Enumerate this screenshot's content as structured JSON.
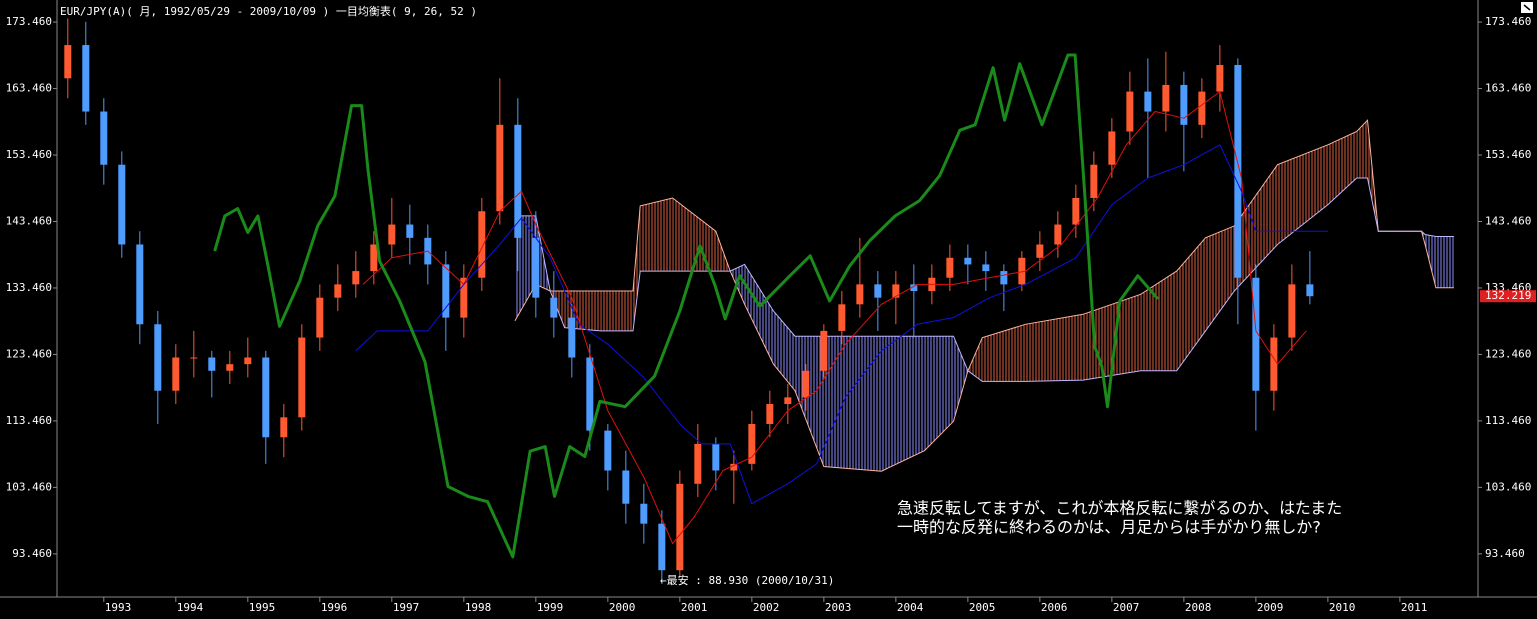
{
  "chart_data": {
    "type": "candlestick",
    "title": "EUR/JPY(A)( 月, 1992/05/29 - 2009/10/09 )   一目均衡表( 9, 26, 52 )",
    "annotations": [
      "←最安 : 88.930 (2000/10/31)",
      "急速反転してますが、これが本格反転に繋がるのか、はたまた",
      "一時的な反発に終わるのかは、月足からは手がかり無しか?"
    ],
    "xlim": [
      1992.35,
      2012.085
    ],
    "ylim": [
      86.97,
      176.78
    ],
    "xticks": [
      1993,
      1994,
      1995,
      1996,
      1997,
      1998,
      1999,
      2000,
      2001,
      2002,
      2003,
      2004,
      2005,
      2006,
      2007,
      2008,
      2009,
      2010,
      2011
    ],
    "yticks": [
      {
        "value": 93.46,
        "label": "93.460"
      },
      {
        "value": 103.46,
        "label": "103.460"
      },
      {
        "value": 113.46,
        "label": "113.460"
      },
      {
        "value": 123.46,
        "label": "123.460"
      },
      {
        "value": 133.46,
        "label": "133.460"
      },
      {
        "value": 143.46,
        "label": "143.460"
      },
      {
        "value": 153.46,
        "label": "153.460"
      },
      {
        "value": 163.46,
        "label": "163.460"
      },
      {
        "value": 173.46,
        "label": "173.460"
      }
    ],
    "last_price": 132.219,
    "last_price_color": "#e02020",
    "candles": {
      "up_color": "#ff5a30",
      "down_color": "#4f9cff",
      "x": [
        1992.5,
        1992.75,
        1993.0,
        1993.25,
        1993.5,
        1993.75,
        1994.0,
        1994.25,
        1994.5,
        1994.75,
        1995.0,
        1995.25,
        1995.5,
        1995.75,
        1996.0,
        1996.25,
        1996.5,
        1996.75,
        1997.0,
        1997.25,
        1997.5,
        1997.75,
        1998.0,
        1998.25,
        1998.5,
        1998.75,
        1999.0,
        1999.25,
        1999.5,
        1999.75,
        2000.0,
        2000.25,
        2000.5,
        2000.75,
        2001.0,
        2001.25,
        2001.5,
        2001.75,
        2002.0,
        2002.25,
        2002.5,
        2002.75,
        2003.0,
        2003.25,
        2003.5,
        2003.75,
        2004.0,
        2004.25,
        2004.5,
        2004.75,
        2005.0,
        2005.25,
        2005.5,
        2005.75,
        2006.0,
        2006.25,
        2006.5,
        2006.75,
        2007.0,
        2007.25,
        2007.5,
        2007.75,
        2008.0,
        2008.25,
        2008.5,
        2008.75,
        2009.0,
        2009.25,
        2009.5,
        2009.75
      ],
      "open": [
        165,
        170,
        160,
        152,
        140,
        128,
        118,
        123,
        123,
        121,
        122,
        123,
        111,
        114,
        126,
        132,
        134,
        136,
        140,
        143,
        141,
        137,
        129,
        135,
        145,
        158,
        141,
        132,
        129,
        123,
        112,
        106,
        101,
        98,
        91,
        104,
        110,
        106,
        107,
        113,
        116,
        117,
        121,
        127,
        131,
        134,
        132,
        134,
        133,
        135,
        138,
        137,
        136,
        134,
        138,
        140,
        143,
        147,
        152,
        157,
        163,
        160,
        164,
        158,
        163,
        167,
        135,
        118,
        126,
        134
      ],
      "high": [
        174,
        173.5,
        162,
        154,
        142,
        130,
        125,
        127,
        124,
        124,
        126,
        124,
        116,
        128,
        134,
        137,
        139,
        142,
        147,
        146,
        143,
        139,
        137,
        147,
        165,
        162,
        145,
        136,
        131,
        125,
        113,
        109,
        104,
        100,
        106,
        113,
        111,
        109,
        115,
        118,
        119,
        122,
        128,
        133,
        141,
        136,
        136,
        137,
        137,
        140,
        140,
        139,
        137,
        139,
        142,
        145,
        149,
        154,
        159,
        166,
        168,
        169,
        166,
        165,
        170,
        168,
        137,
        128,
        137,
        139
      ],
      "low": [
        162,
        158,
        149,
        138,
        125,
        113,
        116,
        120,
        117,
        119,
        120,
        107,
        108,
        112,
        124,
        130,
        132,
        134,
        138,
        137,
        134,
        124,
        126,
        133,
        143,
        136,
        129,
        126,
        120,
        109,
        103,
        98,
        95,
        88.93,
        90,
        102,
        103,
        101,
        106,
        111,
        113,
        115,
        120,
        125,
        129,
        127,
        128,
        126,
        131,
        133,
        134,
        133,
        130,
        133,
        136,
        138,
        141,
        145,
        150,
        155,
        150,
        157,
        151,
        156,
        160,
        128,
        112,
        115,
        124,
        131
      ],
      "close": [
        170,
        160,
        152,
        140,
        128,
        118,
        123,
        123,
        121,
        122,
        123,
        111,
        114,
        126,
        132,
        134,
        136,
        140,
        143,
        141,
        137,
        129,
        135,
        145,
        158,
        141,
        132,
        129,
        123,
        112,
        106,
        101,
        98,
        91,
        104,
        110,
        106,
        107,
        113,
        116,
        117,
        121,
        127,
        131,
        134,
        132,
        134,
        133,
        135,
        138,
        137,
        136,
        134,
        138,
        140,
        143,
        147,
        152,
        157,
        163,
        160,
        164,
        158,
        163,
        167,
        135,
        118,
        126,
        134,
        132.219
      ]
    },
    "cloud": {
      "up_color": "#e06040",
      "down_color": "#8a8aff",
      "span_a_color": "#ffb4a0",
      "span_b_color": "#c0b8ff",
      "x": [
        1998.71,
        1999.0,
        1999.2,
        1999.4,
        1999.9,
        2000.35,
        2000.45,
        2000.9,
        2001.5,
        2001.7,
        2001.9,
        2002.3,
        2002.6,
        2003.0,
        2003.8,
        2004.4,
        2004.8,
        2005.0,
        2005.2,
        2005.8,
        2006.6,
        2007.4,
        2007.9,
        2008.3,
        2008.7,
        2009.3,
        2010.0,
        2010.4,
        2010.55,
        2010.7,
        2011.3,
        2011.35,
        2011.5,
        2011.75
      ],
      "span_a": [
        128.5,
        134,
        133,
        133,
        133,
        133,
        145.8,
        147,
        142,
        136,
        131,
        122,
        118,
        106.6,
        105.9,
        109,
        113.4,
        121,
        126,
        128,
        129.5,
        132.5,
        136,
        141,
        142.8,
        152,
        155,
        157,
        158.7,
        142,
        142,
        140,
        133.5,
        133.5
      ],
      "span_b": [
        144.3,
        144.3,
        133,
        127.5,
        127,
        127,
        136,
        136,
        136,
        136,
        137,
        130,
        126.2,
        126.2,
        126.2,
        126.2,
        126.2,
        121,
        119.4,
        119.4,
        119.6,
        121,
        121,
        127,
        133,
        140,
        146,
        150,
        150,
        142,
        142,
        141.5,
        141.2,
        141.2
      ]
    },
    "lines": [
      {
        "color": "#e01010",
        "width": 1,
        "x": [
          1996.6,
          1997.0,
          1997.5,
          1998.0,
          1998.5,
          1998.8,
          1999.0,
          1999.5,
          2000.0,
          2000.5,
          2000.9,
          2001.2,
          2001.6,
          2002.0,
          2002.5,
          2002.9,
          2003.3,
          2003.8,
          2004.3,
          2004.8,
          2005.3,
          2005.8,
          2006.3,
          2006.8,
          2007.2,
          2007.6,
          2008.0,
          2008.5,
          2008.8,
          2009.0,
          2009.3,
          2009.7
        ],
        "values": [
          134,
          138,
          139,
          134,
          145,
          148,
          143,
          132,
          115,
          105,
          95,
          99,
          106,
          108,
          115,
          118,
          125,
          131,
          134,
          134,
          135,
          136,
          140,
          147,
          155,
          160,
          159,
          163,
          150,
          127,
          122,
          127
        ]
      },
      {
        "color": "#1010e0",
        "width": 1,
        "x": [
          1996.5,
          1996.8,
          1997.5,
          1998.0,
          1998.5,
          1998.8,
          1999.2,
          1999.6,
          2000.0,
          2000.5,
          2001.0,
          2001.3,
          2001.7,
          2002.0,
          2002.5,
          2002.9,
          2003.3,
          2003.8,
          2004.3,
          2004.8,
          2005.3,
          2005.8,
          2006.5,
          2007.0,
          2007.5,
          2008.0,
          2008.5,
          2008.8,
          2009.0,
          2009.5,
          2010.0
        ],
        "values": [
          124,
          127,
          127,
          134,
          140,
          144,
          138,
          128,
          125,
          120,
          113,
          110,
          110,
          101,
          104,
          107,
          117,
          124,
          128,
          129,
          132,
          134,
          138,
          146,
          150,
          152,
          155,
          148,
          142,
          142,
          142
        ]
      },
      {
        "color": "#1a8a1a",
        "width": 3,
        "x": [
          1994.54,
          1994.68,
          1994.86,
          1995.0,
          1995.14,
          1995.28,
          1995.44,
          1995.72,
          1995.97,
          1996.21,
          1996.44,
          1996.58,
          1996.67,
          1996.83,
          1997.11,
          1997.46,
          1997.78,
          1998.06,
          1998.33,
          1998.68,
          1998.92,
          1999.13,
          1999.26,
          1999.47,
          1999.68,
          1999.89,
          2000.24,
          2000.65,
          2001.0,
          2001.28,
          2001.49,
          2001.63,
          2001.83,
          2002.11,
          2002.53,
          2002.81,
          2003.08,
          2003.36,
          2003.64,
          2003.99,
          2004.33,
          2004.61,
          2004.89,
          2005.1,
          2005.35,
          2005.51,
          2005.72,
          2006.03,
          2006.39,
          2006.49,
          2006.63,
          2006.76,
          2006.86,
          2006.94,
          2007.11,
          2007.36,
          2007.64
        ],
        "values": [
          139.0,
          144.3,
          145.4,
          141.8,
          144.3,
          136.8,
          127.7,
          134.5,
          142.8,
          147.3,
          160.9,
          160.9,
          151.1,
          137.5,
          131.5,
          122.4,
          103.6,
          102.1,
          101.3,
          93.0,
          108.9,
          109.6,
          102.1,
          109.6,
          108.1,
          116.4,
          115.6,
          120.2,
          130.0,
          139.8,
          133.8,
          128.8,
          135.3,
          130.7,
          135.3,
          138.3,
          131.5,
          136.8,
          140.6,
          144.3,
          146.6,
          150.4,
          157.2,
          158.0,
          166.6,
          158.7,
          167.2,
          158.0,
          168.5,
          168.5,
          146.6,
          124.7,
          121.7,
          115.6,
          131.5,
          135.3,
          131.8
        ]
      }
    ]
  }
}
